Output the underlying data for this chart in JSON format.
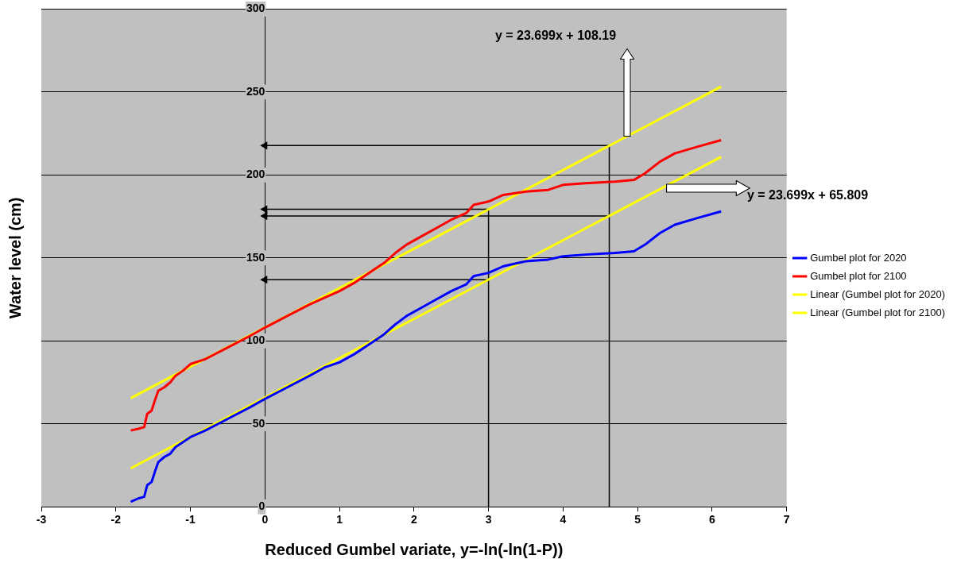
{
  "chart_data": {
    "type": "line",
    "xlabel": "Reduced Gumbel variate, y=-ln(-ln(1-P))",
    "ylabel": "Water level (cm)",
    "xlim": [
      -3,
      7
    ],
    "xticks": [
      -3,
      -2,
      -1,
      0,
      1,
      2,
      3,
      4,
      5,
      6,
      7
    ],
    "ylim": [
      0,
      300
    ],
    "yticks": [
      0,
      50,
      100,
      150,
      200,
      250,
      300
    ],
    "grid": "y",
    "legend": "right",
    "annotations": [
      "y = 23.699x + 108.19",
      "y = 23.699x + 65.809"
    ],
    "series": [
      {
        "name": "Gumbel plot for 2020",
        "color": "#0000ff",
        "x": [
          -1.8,
          -1.7,
          -1.62,
          -1.58,
          -1.52,
          -1.47,
          -1.43,
          -1.35,
          -1.27,
          -1.2,
          -1.1,
          -1.0,
          -0.8,
          -0.5,
          -0.2,
          0,
          0.3,
          0.6,
          0.8,
          1.0,
          1.2,
          1.4,
          1.6,
          1.75,
          1.9,
          2.1,
          2.3,
          2.5,
          2.7,
          2.8,
          3.0,
          3.2,
          3.5,
          3.8,
          4.0,
          4.3,
          4.7,
          4.95,
          5.1,
          5.3,
          5.5,
          5.8,
          6.12
        ],
        "values": [
          3,
          5,
          6,
          13,
          15,
          22,
          27,
          30,
          32,
          36,
          39,
          42,
          46,
          53,
          60,
          65,
          72,
          79,
          84,
          87,
          92,
          98,
          104,
          110,
          115,
          120,
          125,
          130,
          134,
          139,
          141,
          145,
          148,
          149,
          151,
          152,
          153,
          154,
          158,
          165,
          170,
          174,
          178
        ]
      },
      {
        "name": "Gumbel plot for 2100",
        "color": "#ff0000",
        "x": [
          -1.8,
          -1.7,
          -1.62,
          -1.58,
          -1.52,
          -1.47,
          -1.43,
          -1.35,
          -1.27,
          -1.2,
          -1.1,
          -1.0,
          -0.8,
          -0.5,
          -0.2,
          0,
          0.3,
          0.6,
          0.8,
          1.0,
          1.2,
          1.4,
          1.6,
          1.75,
          1.9,
          2.1,
          2.3,
          2.5,
          2.7,
          2.8,
          3.0,
          3.2,
          3.5,
          3.8,
          4.0,
          4.3,
          4.7,
          4.95,
          5.1,
          5.3,
          5.5,
          5.8,
          6.12
        ],
        "values": [
          46,
          47,
          48,
          56,
          58,
          65,
          70,
          72,
          75,
          79,
          82,
          86,
          89,
          96,
          103,
          108,
          115,
          122,
          126,
          130,
          135,
          141,
          147,
          153,
          158,
          163,
          168,
          173,
          177,
          182,
          184,
          188,
          190,
          191,
          194,
          195,
          196,
          197,
          201,
          208,
          213,
          217,
          221
        ]
      },
      {
        "name": "Linear (Gumbel plot for 2020)",
        "color": "#ffff00",
        "x": [
          -1.8,
          6.12
        ],
        "values": [
          23.2,
          210.9
        ]
      },
      {
        "name": "Linear (Gumbel plot for 2100)",
        "color": "#ffff00",
        "x": [
          -1.8,
          6.12
        ],
        "values": [
          65.5,
          253.2
        ]
      },
      {
        "color": "#000000",
        "x": [
          4.62,
          4.62,
          0
        ],
        "values": [
          0,
          217.7,
          217.7
        ]
      },
      {
        "color": "#000000",
        "x": [
          4.62,
          0
        ],
        "values": [
          175.3,
          175.3
        ]
      },
      {
        "color": "#000000",
        "x": [
          3,
          3,
          0
        ],
        "values": [
          0,
          179.3,
          179.3
        ]
      },
      {
        "color": "#000000",
        "x": [
          3,
          0
        ],
        "values": [
          136.9,
          136.9
        ]
      }
    ]
  }
}
